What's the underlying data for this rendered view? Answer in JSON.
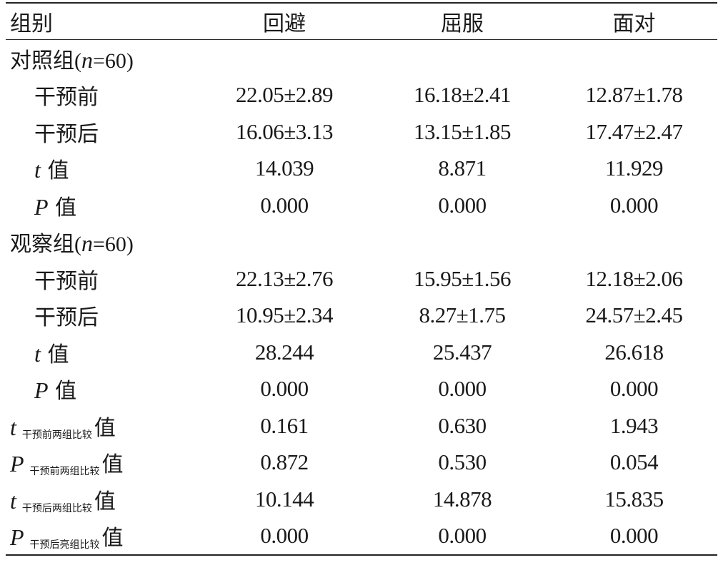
{
  "table": {
    "header": {
      "group": "组别",
      "col1": "回避",
      "col2": "屈服",
      "col3": "面对"
    },
    "control": {
      "name": "对照组",
      "n_open": "(",
      "n_var": "n",
      "n_eq": "=60",
      "n_close": ")",
      "rows": [
        {
          "label": "干预前",
          "v1": "22.05±2.89",
          "v2": "16.18±2.41",
          "v3": "12.87±1.78"
        },
        {
          "label": "干预后",
          "v1": "16.06±3.13",
          "v2": "13.15±1.85",
          "v3": "17.47±2.47"
        }
      ],
      "t": {
        "sym": "t",
        "suffix": "值",
        "v1": "14.039",
        "v2": "8.871",
        "v3": "11.929"
      },
      "p": {
        "sym": "P",
        "suffix": "值",
        "v1": "0.000",
        "v2": "0.000",
        "v3": "0.000"
      }
    },
    "observation": {
      "name": "观察组",
      "n_open": "(",
      "n_var": "n",
      "n_eq": "=60",
      "n_close": ")",
      "rows": [
        {
          "label": "干预前",
          "v1": "22.13±2.76",
          "v2": "15.95±1.56",
          "v3": "12.18±2.06"
        },
        {
          "label": "干预后",
          "v1": "10.95±2.34",
          "v2": "8.27±1.75",
          "v3": "24.57±2.45"
        }
      ],
      "t": {
        "sym": "t",
        "suffix": "值",
        "v1": "28.244",
        "v2": "25.437",
        "v3": "26.618"
      },
      "p": {
        "sym": "P",
        "suffix": "值",
        "v1": "0.000",
        "v2": "0.000",
        "v3": "0.000"
      }
    },
    "comparisons": [
      {
        "sym": "t",
        "sub": "干预前两组比较",
        "suffix": "值",
        "v1": "0.161",
        "v2": "0.630",
        "v3": "1.943"
      },
      {
        "sym": "P",
        "sub": "干预前两组比较",
        "suffix": "值",
        "v1": "0.872",
        "v2": "0.530",
        "v3": "0.054"
      },
      {
        "sym": "t",
        "sub": "干预后两组比较",
        "suffix": "值",
        "v1": "10.144",
        "v2": "14.878",
        "v3": "15.835"
      },
      {
        "sym": "P",
        "sub": "干预后亮组比较",
        "suffix": "值",
        "v1": "0.000",
        "v2": "0.000",
        "v3": "0.000"
      }
    ]
  }
}
